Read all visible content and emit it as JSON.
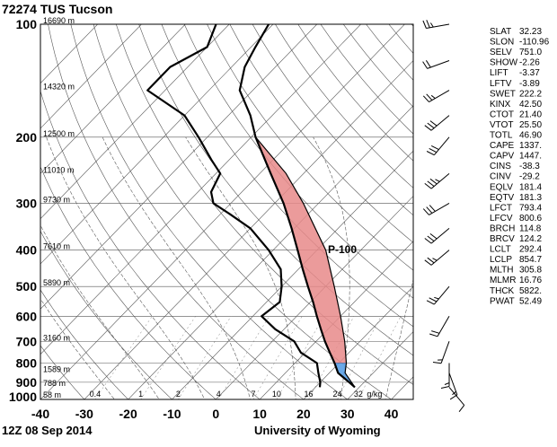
{
  "header": {
    "station": "72274 TUS Tucson"
  },
  "footer": {
    "datetime": "12Z 08 Sep 2014",
    "source": "University of Wyoming"
  },
  "chart_data": {
    "type": "skew-t",
    "x_axis": {
      "ticks": [
        "-40",
        "-30",
        "-20",
        "-10",
        "0",
        "10",
        "20",
        "30",
        "40"
      ],
      "values": [
        -40,
        -30,
        -20,
        -10,
        0,
        10,
        20,
        30,
        40
      ]
    },
    "y_axis": {
      "ticks": [
        "100",
        "200",
        "300",
        "400",
        "500",
        "600",
        "700",
        "800",
        "900",
        "1000"
      ],
      "values": [
        100,
        200,
        300,
        400,
        500,
        600,
        700,
        800,
        900,
        1000
      ],
      "scale": "log"
    },
    "altitude_labels": [
      {
        "p": 100,
        "text": "16690 m"
      },
      {
        "p": 150,
        "text": "14320 m"
      },
      {
        "p": 200,
        "text": "12500 m"
      },
      {
        "p": 250,
        "text": "11010 m"
      },
      {
        "p": 300,
        "text": "9730 m"
      },
      {
        "p": 400,
        "text": "7610 m"
      },
      {
        "p": 500,
        "text": "5890 m"
      },
      {
        "p": 700,
        "text": "3160 m"
      },
      {
        "p": 850,
        "text": "1589 m"
      },
      {
        "p": 925,
        "text": "788 m"
      },
      {
        "p": 1000,
        "text": "58 m"
      }
    ],
    "mixing_ratio_labels": [
      "0.4",
      "1",
      "2",
      "4",
      "7",
      "10",
      "16",
      "24",
      "32",
      "g/kg"
    ],
    "mixing_ratio_values": [
      0.4,
      1,
      2,
      4,
      7,
      10,
      16,
      24,
      32
    ],
    "annotation": "P-100",
    "temperature": [
      {
        "p": 928,
        "t": 29.0
      },
      {
        "p": 900,
        "t": 26.6
      },
      {
        "p": 850,
        "t": 22.0
      },
      {
        "p": 800,
        "t": 19.0
      },
      {
        "p": 750,
        "t": 15.6
      },
      {
        "p": 700,
        "t": 12.0
      },
      {
        "p": 650,
        "t": 8.4
      },
      {
        "p": 600,
        "t": 4.6
      },
      {
        "p": 550,
        "t": 0.6
      },
      {
        "p": 500,
        "t": -4.0
      },
      {
        "p": 450,
        "t": -9.0
      },
      {
        "p": 400,
        "t": -14.4
      },
      {
        "p": 350,
        "t": -20.6
      },
      {
        "p": 300,
        "t": -28.0
      },
      {
        "p": 250,
        "t": -37.5
      },
      {
        "p": 200,
        "t": -49.0
      },
      {
        "p": 175,
        "t": -55.0
      },
      {
        "p": 150,
        "t": -63.0
      },
      {
        "p": 130,
        "t": -67.0
      },
      {
        "p": 115,
        "t": -69.0
      },
      {
        "p": 100,
        "t": -71.0
      }
    ],
    "dewpoint": [
      {
        "p": 928,
        "t": 21.0
      },
      {
        "p": 900,
        "t": 20.0
      },
      {
        "p": 850,
        "t": 17.5
      },
      {
        "p": 800,
        "t": 15.0
      },
      {
        "p": 750,
        "t": 9.0
      },
      {
        "p": 700,
        "t": 5.0
      },
      {
        "p": 650,
        "t": -2.0
      },
      {
        "p": 600,
        "t": -8.0
      },
      {
        "p": 550,
        "t": -7.0
      },
      {
        "p": 500,
        "t": -10.0
      },
      {
        "p": 450,
        "t": -14.0
      },
      {
        "p": 400,
        "t": -21.0
      },
      {
        "p": 350,
        "t": -30.0
      },
      {
        "p": 320,
        "t": -38.0
      },
      {
        "p": 300,
        "t": -44.0
      },
      {
        "p": 280,
        "t": -47.0
      },
      {
        "p": 250,
        "t": -49.0
      },
      {
        "p": 230,
        "t": -54.0
      },
      {
        "p": 200,
        "t": -62.0
      },
      {
        "p": 175,
        "t": -70.0
      },
      {
        "p": 150,
        "t": -84.0
      },
      {
        "p": 130,
        "t": -84.0
      },
      {
        "p": 115,
        "t": -80.0
      },
      {
        "p": 100,
        "t": -83.0
      }
    ],
    "parcel": [
      {
        "p": 928,
        "t": 29.0
      },
      {
        "p": 850,
        "t": 23.6
      },
      {
        "p": 800,
        "t": 21.7
      },
      {
        "p": 700,
        "t": 16.5
      },
      {
        "p": 600,
        "t": 10.0
      },
      {
        "p": 500,
        "t": 2.0
      },
      {
        "p": 400,
        "t": -8.0
      },
      {
        "p": 300,
        "t": -23.5
      },
      {
        "p": 250,
        "t": -34.0
      },
      {
        "p": 200,
        "t": -49.0
      }
    ],
    "winds": [
      {
        "p": 928,
        "dir": 140,
        "spd": 10
      },
      {
        "p": 850,
        "dir": 160,
        "spd": 15
      },
      {
        "p": 800,
        "dir": 180,
        "spd": 15
      },
      {
        "p": 700,
        "dir": 200,
        "spd": 15
      },
      {
        "p": 600,
        "dir": 210,
        "spd": 20
      },
      {
        "p": 500,
        "dir": 220,
        "spd": 25
      },
      {
        "p": 400,
        "dir": 230,
        "spd": 25
      },
      {
        "p": 350,
        "dir": 230,
        "spd": 30
      },
      {
        "p": 300,
        "dir": 240,
        "spd": 30
      },
      {
        "p": 250,
        "dir": 230,
        "spd": 35
      },
      {
        "p": 200,
        "dir": 220,
        "spd": 30
      },
      {
        "p": 175,
        "dir": 230,
        "spd": 30
      },
      {
        "p": 150,
        "dir": 240,
        "spd": 25
      },
      {
        "p": 125,
        "dir": 250,
        "spd": 20
      },
      {
        "p": 100,
        "dir": 260,
        "spd": 25
      }
    ]
  },
  "indices": [
    {
      "label": "SLAT",
      "value": "32.23"
    },
    {
      "label": "SLON",
      "value": "-110.96"
    },
    {
      "label": "SELV",
      "value": "751.0"
    },
    {
      "label": "SHOW",
      "value": "-2.26"
    },
    {
      "label": "LIFT",
      "value": "-3.37"
    },
    {
      "label": "LFTV",
      "value": "-3.89"
    },
    {
      "label": "SWET",
      "value": "222.2"
    },
    {
      "label": "KINX",
      "value": "42.50"
    },
    {
      "label": "CTOT",
      "value": "21.40"
    },
    {
      "label": "VTOT",
      "value": "25.50"
    },
    {
      "label": "TOTL",
      "value": "46.90"
    },
    {
      "label": "CAPE",
      "value": "1337."
    },
    {
      "label": "CAPV",
      "value": "1447."
    },
    {
      "label": "CINS",
      "value": "-38.3"
    },
    {
      "label": "CINV",
      "value": "-29.2"
    },
    {
      "label": "EQLV",
      "value": "181.4"
    },
    {
      "label": "EQTV",
      "value": "181.3"
    },
    {
      "label": "LFCT",
      "value": "793.4"
    },
    {
      "label": "LFCV",
      "value": "800.6"
    },
    {
      "label": "BRCH",
      "value": "114.8"
    },
    {
      "label": "BRCV",
      "value": "124.2"
    },
    {
      "label": "LCLT",
      "value": "292.4"
    },
    {
      "label": "LCLP",
      "value": "854.7"
    },
    {
      "label": "MLTH",
      "value": "305.8"
    },
    {
      "label": "MLMR",
      "value": "16.76"
    },
    {
      "label": "THCK",
      "value": "5822."
    },
    {
      "label": "PWAT",
      "value": "52.49"
    }
  ]
}
